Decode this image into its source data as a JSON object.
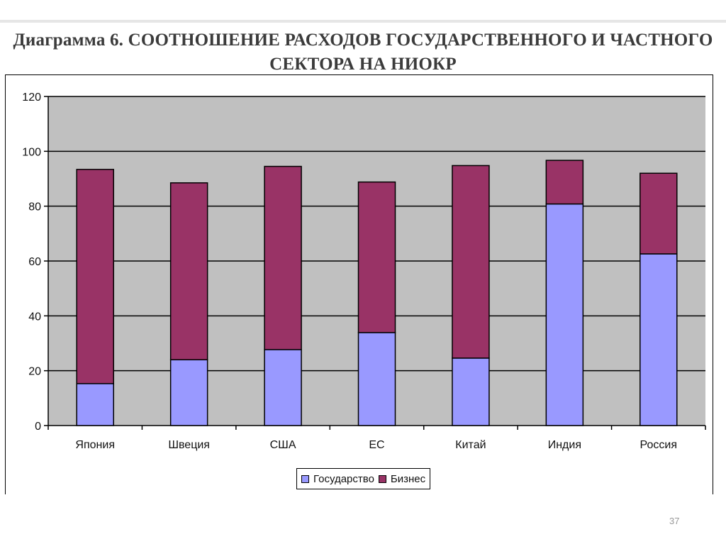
{
  "slide": {
    "title_line1": "Диаграмма 6. СООТНОШЕНИЕ РАСХОДОВ ГОСУДАРСТВЕННОГО И ЧАСТНОГО",
    "title_line2": "СЕКТОРА НА НИОКР",
    "page_number": "37"
  },
  "colors": {
    "government": "#9999ff",
    "business": "#993366",
    "plot_background": "#c0c0c0",
    "gridline": "#000000"
  },
  "chart_data": {
    "type": "bar",
    "stacked": true,
    "categories": [
      "Япония",
      "Швеция",
      "США",
      "ЕС",
      "Китай",
      "Индия",
      "Россия"
    ],
    "series": [
      {
        "name": "Государство",
        "values": [
          15.3,
          24.0,
          27.7,
          33.9,
          24.6,
          80.8,
          62.6
        ]
      },
      {
        "name": "Бизнес",
        "values": [
          78.1,
          64.5,
          66.8,
          54.9,
          70.2,
          15.9,
          29.4
        ]
      }
    ],
    "yticks": [
      0,
      20,
      40,
      60,
      80,
      100,
      120
    ],
    "ylim": [
      0,
      120
    ],
    "grid": true,
    "legend": "bottom"
  }
}
